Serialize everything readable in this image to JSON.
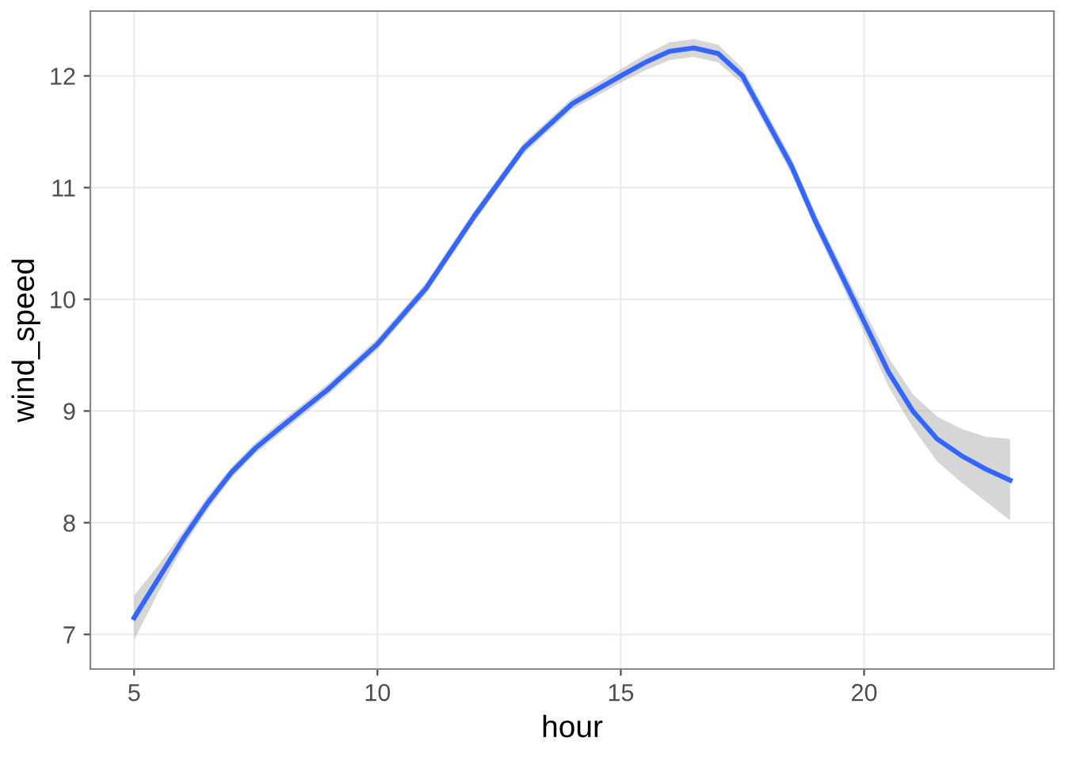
{
  "chart_data": {
    "type": "line",
    "xlabel": "hour",
    "ylabel": "wind_speed",
    "x": [
      5,
      5.5,
      6,
      6.5,
      7,
      7.5,
      8,
      9,
      10,
      11,
      12,
      13,
      14,
      15,
      15.5,
      16,
      16.5,
      17,
      17.5,
      18,
      18.5,
      19,
      19.5,
      20,
      20.5,
      21,
      21.5,
      22,
      22.5,
      23
    ],
    "series": [
      {
        "color": "#3366ff",
        "values": [
          7.15,
          7.5,
          7.85,
          8.17,
          8.45,
          8.67,
          8.85,
          9.2,
          9.6,
          10.1,
          10.75,
          11.35,
          11.75,
          12.0,
          12.12,
          12.22,
          12.25,
          12.2,
          12.0,
          11.6,
          11.2,
          10.7,
          10.25,
          9.8,
          9.35,
          9.0,
          8.75,
          8.6,
          8.48,
          8.38
        ],
        "lower": [
          6.95,
          7.38,
          7.78,
          8.11,
          8.4,
          8.62,
          8.8,
          9.15,
          9.55,
          10.05,
          10.7,
          11.3,
          11.7,
          11.94,
          12.05,
          12.14,
          12.17,
          12.12,
          11.93,
          11.53,
          11.13,
          10.63,
          10.17,
          9.7,
          9.22,
          8.85,
          8.55,
          8.36,
          8.19,
          8.02
        ],
        "upper": [
          7.35,
          7.62,
          7.92,
          8.23,
          8.5,
          8.72,
          8.9,
          9.25,
          9.65,
          10.15,
          10.8,
          11.4,
          11.8,
          12.06,
          12.19,
          12.3,
          12.33,
          12.28,
          12.07,
          11.67,
          11.27,
          10.77,
          10.33,
          9.9,
          9.48,
          9.15,
          8.95,
          8.84,
          8.77,
          8.75
        ]
      }
    ],
    "xlim": [
      4.1,
      23.9
    ],
    "ylim": [
      6.69,
      12.58
    ],
    "xticks": [
      5,
      10,
      15,
      20
    ],
    "yticks": [
      7,
      8,
      9,
      10,
      11,
      12
    ],
    "grid": true
  }
}
